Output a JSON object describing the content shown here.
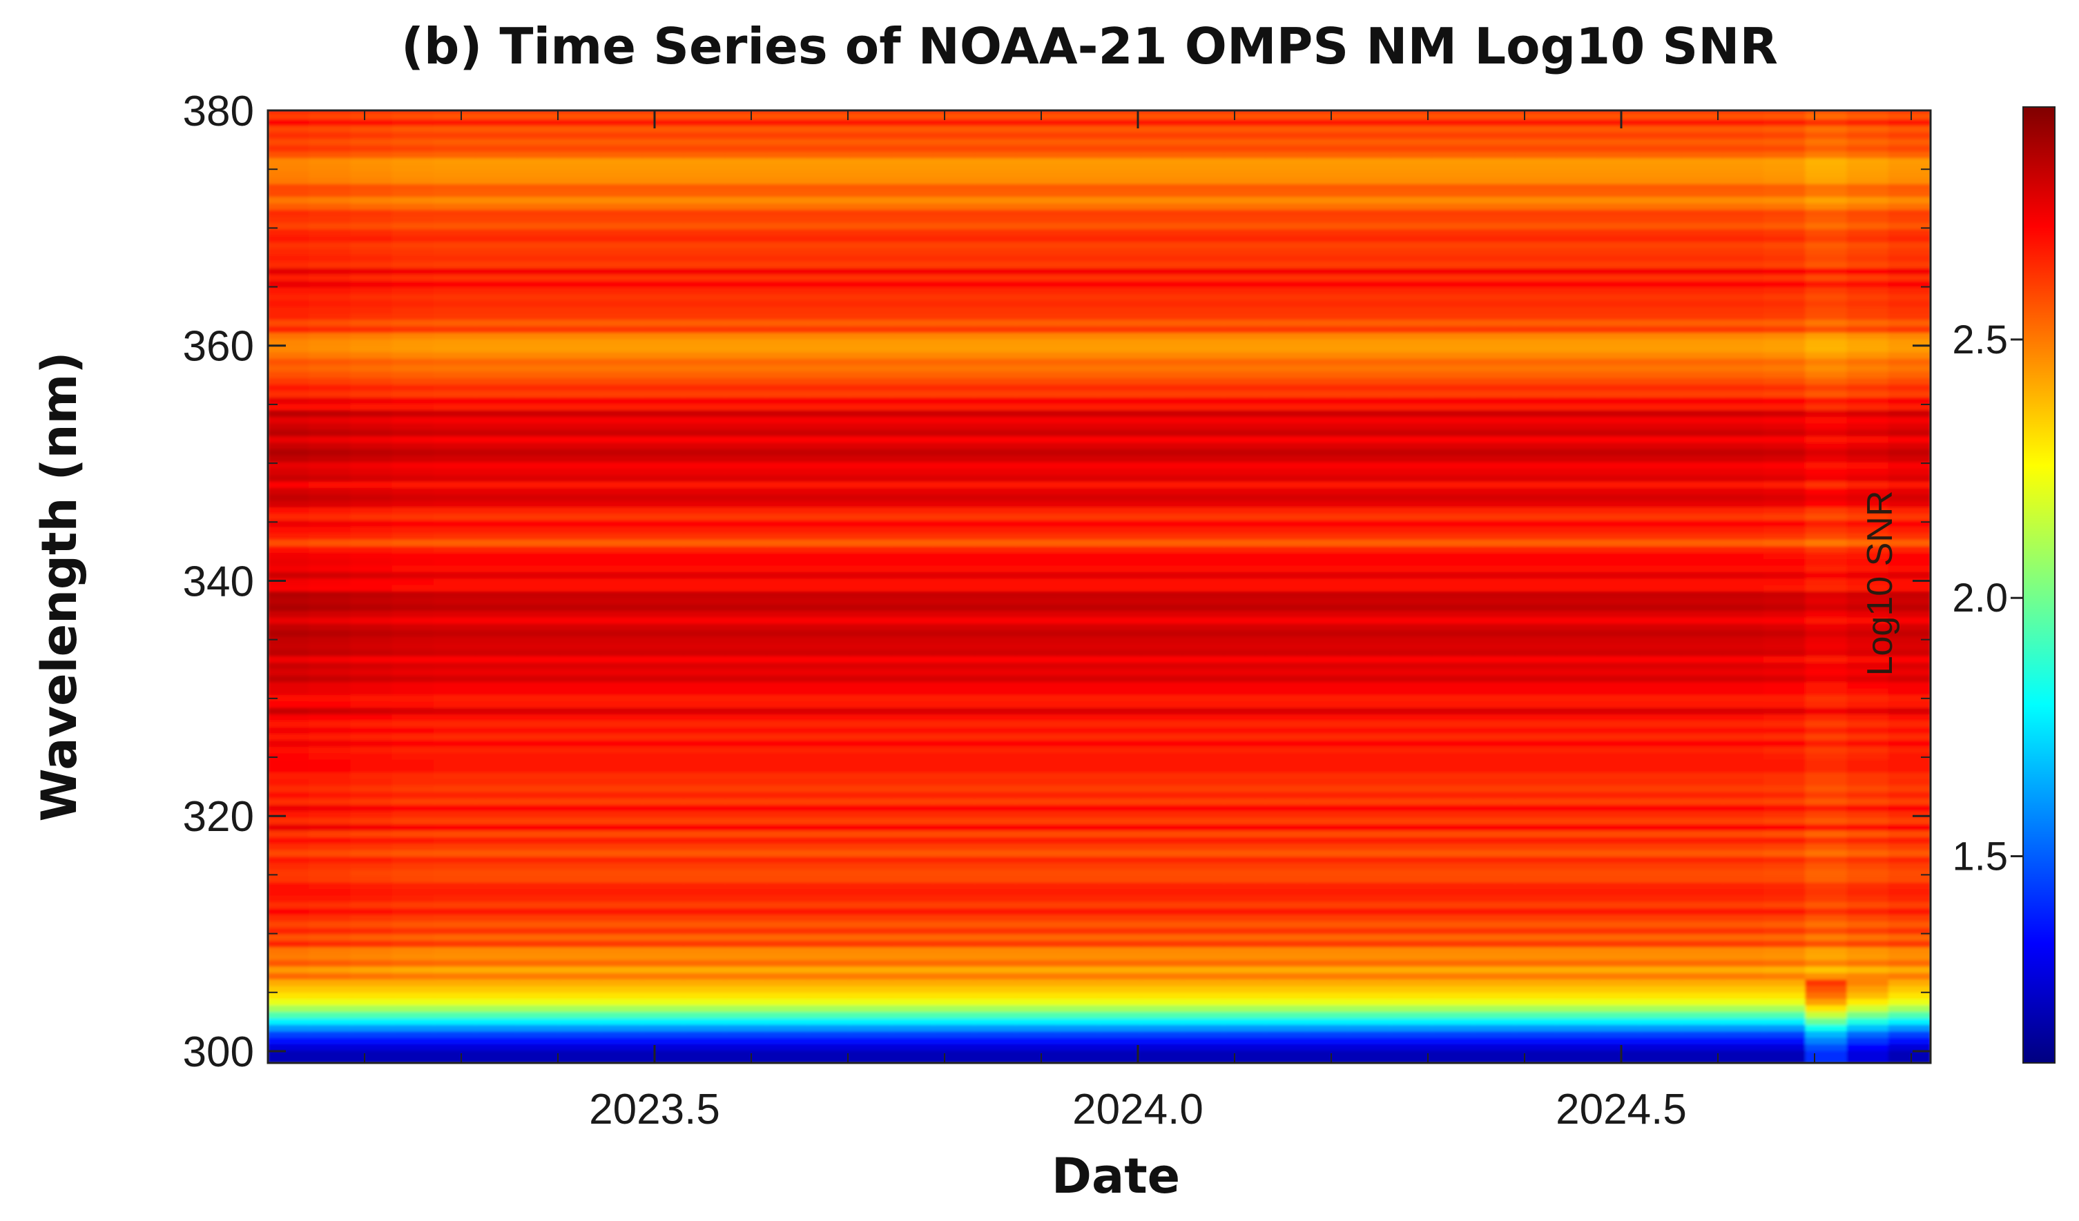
{
  "chart_data": {
    "type": "heatmap",
    "title": "(b) Time Series of NOAA-21 OMPS NM Log10 SNR",
    "xlabel": "Date",
    "ylabel": "Wavelength (nm)",
    "xlim": [
      2023.1,
      2024.82
    ],
    "ylim": [
      299,
      380
    ],
    "x_ticks": [
      2023.5,
      2024.0,
      2024.5
    ],
    "x_tick_labels": [
      "2023.5",
      "2024.0",
      "2024.5"
    ],
    "y_ticks": [
      300,
      320,
      340,
      360,
      380
    ],
    "y_tick_labels": [
      "300",
      "320",
      "340",
      "360",
      "380"
    ],
    "colorbar": {
      "label": "Log10 SNR",
      "range": [
        1.1,
        2.95
      ],
      "ticks": [
        1.5,
        2.0,
        2.5
      ],
      "tick_labels": [
        "1.5",
        "2.0",
        "2.5"
      ],
      "colormap": [
        "#000080",
        "#0000ff",
        "#0080ff",
        "#00ffff",
        "#80ff80",
        "#ffff00",
        "#ff8000",
        "#ff0000",
        "#800000"
      ]
    },
    "wavelength_profile": [
      {
        "wl": 300.0,
        "snr": 1.2
      },
      {
        "wl": 301.5,
        "snr": 1.45
      },
      {
        "wl": 302.5,
        "snr": 1.75
      },
      {
        "wl": 303.5,
        "snr": 2.05
      },
      {
        "wl": 304.5,
        "snr": 2.28
      },
      {
        "wl": 306.0,
        "snr": 2.42
      },
      {
        "wl": 307.5,
        "snr": 2.48
      },
      {
        "wl": 309.0,
        "snr": 2.55
      },
      {
        "wl": 311.0,
        "snr": 2.62
      },
      {
        "wl": 314.0,
        "snr": 2.66
      },
      {
        "wl": 317.0,
        "snr": 2.62
      },
      {
        "wl": 320.0,
        "snr": 2.67
      },
      {
        "wl": 323.0,
        "snr": 2.63
      },
      {
        "wl": 326.0,
        "snr": 2.7
      },
      {
        "wl": 330.0,
        "snr": 2.73
      },
      {
        "wl": 334.0,
        "snr": 2.76
      },
      {
        "wl": 338.0,
        "snr": 2.78
      },
      {
        "wl": 341.0,
        "snr": 2.74
      },
      {
        "wl": 343.5,
        "snr": 2.55
      },
      {
        "wl": 346.0,
        "snr": 2.72
      },
      {
        "wl": 350.0,
        "snr": 2.76
      },
      {
        "wl": 354.0,
        "snr": 2.77
      },
      {
        "wl": 357.0,
        "snr": 2.6
      },
      {
        "wl": 359.5,
        "snr": 2.45
      },
      {
        "wl": 362.0,
        "snr": 2.6
      },
      {
        "wl": 366.0,
        "snr": 2.7
      },
      {
        "wl": 369.0,
        "snr": 2.6
      },
      {
        "wl": 372.0,
        "snr": 2.52
      },
      {
        "wl": 375.0,
        "snr": 2.48
      },
      {
        "wl": 378.0,
        "snr": 2.6
      },
      {
        "wl": 380.0,
        "snr": 2.65
      }
    ]
  }
}
